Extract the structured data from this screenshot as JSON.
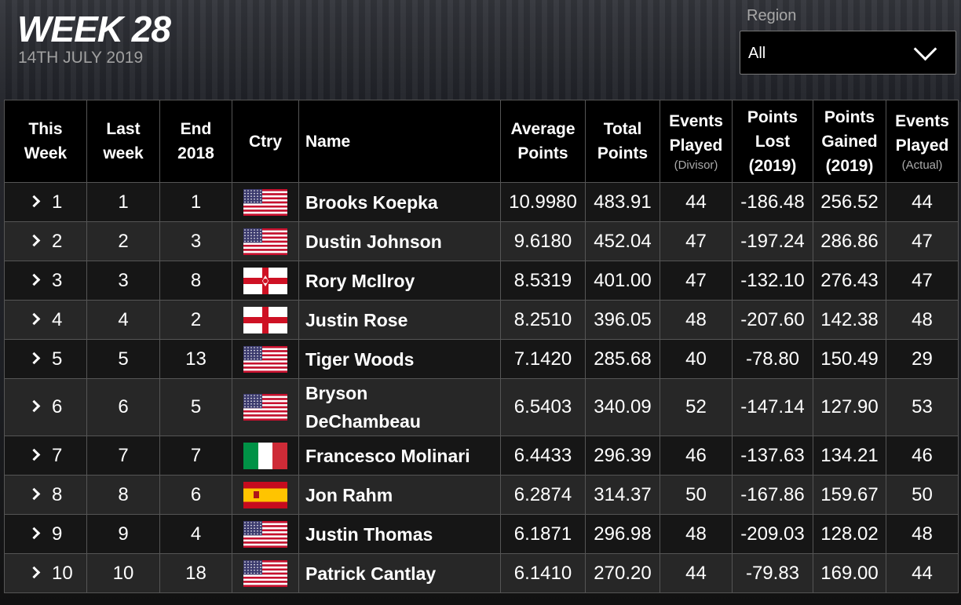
{
  "header": {
    "title": "WEEK 28",
    "date": "14TH JULY 2019"
  },
  "region": {
    "label": "Region",
    "selected": "All"
  },
  "table": {
    "columns": [
      {
        "lines": [
          "This",
          "Week"
        ]
      },
      {
        "lines": [
          "Last",
          "week"
        ]
      },
      {
        "lines": [
          "End",
          "2018"
        ]
      },
      {
        "lines": [
          "Ctry"
        ]
      },
      {
        "lines": [
          "Name"
        ]
      },
      {
        "lines": [
          "Average",
          "Points"
        ]
      },
      {
        "lines": [
          "Total",
          "Points"
        ]
      },
      {
        "lines": [
          "Events",
          "Played"
        ],
        "note": "(Divisor)"
      },
      {
        "lines": [
          "Points",
          "Lost",
          "(2019)"
        ]
      },
      {
        "lines": [
          "Points",
          "Gained",
          "(2019)"
        ]
      },
      {
        "lines": [
          "Events",
          "Played"
        ],
        "note": "(Actual)"
      }
    ],
    "rows": [
      [
        "1",
        "1",
        "1",
        "Brooks Koepka",
        "10.9980",
        "483.91",
        "44",
        "-186.48",
        "256.52",
        "44"
      ],
      [
        "2",
        "2",
        "3",
        "Dustin Johnson",
        "9.6180",
        "452.04",
        "47",
        "-197.24",
        "286.86",
        "47"
      ],
      [
        "3",
        "3",
        "8",
        "Rory McIlroy",
        "8.5319",
        "401.00",
        "47",
        "-132.10",
        "276.43",
        "47"
      ],
      [
        "4",
        "4",
        "2",
        "Justin Rose",
        "8.2510",
        "396.05",
        "48",
        "-207.60",
        "142.38",
        "48"
      ],
      [
        "5",
        "5",
        "13",
        "Tiger Woods",
        "7.1420",
        "285.68",
        "40",
        "-78.80",
        "150.49",
        "29"
      ],
      [
        "6",
        "6",
        "5",
        "Bryson\nDeChambeau",
        "6.5403",
        "340.09",
        "52",
        "-147.14",
        "127.90",
        "53"
      ],
      [
        "7",
        "7",
        "7",
        "Francesco Molinari",
        "6.4433",
        "296.39",
        "46",
        "-137.63",
        "134.21",
        "46"
      ],
      [
        "8",
        "8",
        "6",
        "Jon Rahm",
        "6.2874",
        "314.37",
        "50",
        "-167.86",
        "159.67",
        "50"
      ],
      [
        "9",
        "9",
        "4",
        "Justin Thomas",
        "6.1871",
        "296.98",
        "48",
        "-209.03",
        "128.02",
        "48"
      ],
      [
        "10",
        "10",
        "18",
        "Patrick Cantlay",
        "6.1410",
        "270.20",
        "44",
        "-79.83",
        "169.00",
        "44"
      ]
    ]
  }
}
